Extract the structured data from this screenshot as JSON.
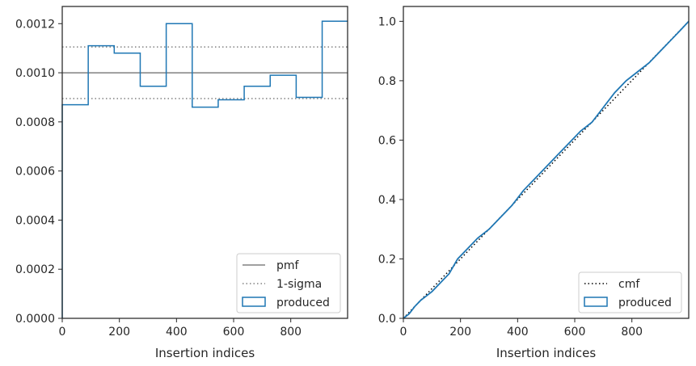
{
  "chart_data": [
    {
      "type": "histogram",
      "xlabel": "Insertion indices",
      "ylabel": "",
      "xlim": [
        0,
        999
      ],
      "ylim": [
        0,
        0.00127
      ],
      "xticks": [
        0,
        200,
        400,
        600,
        800
      ],
      "yticks": [
        0.0,
        0.0002,
        0.0004,
        0.0006,
        0.0008,
        0.001,
        0.0012
      ],
      "xtick_labels": [
        "0",
        "200",
        "400",
        "600",
        "800"
      ],
      "ytick_labels": [
        "0.0000",
        "0.0002",
        "0.0004",
        "0.0006",
        "0.0008",
        "0.0010",
        "0.0012"
      ],
      "bin_edges": [
        0,
        91,
        182,
        273,
        364,
        455,
        546,
        637,
        728,
        819,
        910,
        1000
      ],
      "values": [
        0.00087,
        0.00111,
        0.00108,
        0.000945,
        0.0012,
        0.00086,
        0.00089,
        0.000945,
        0.00099,
        0.0009,
        0.00121
      ],
      "pmf": 0.001,
      "sigma_band": [
        0.000895,
        0.001105
      ],
      "legend_position": "lower right",
      "legend": [
        "pmf",
        "1-sigma",
        "produced"
      ],
      "colors": {
        "produced": "#1f77b4",
        "pmf": "#808080",
        "sigma": "#808080"
      }
    },
    {
      "type": "line",
      "xlabel": "Insertion indices",
      "ylabel": "",
      "xlim": [
        0,
        999
      ],
      "ylim": [
        0,
        1.05
      ],
      "xticks": [
        0,
        200,
        400,
        600,
        800
      ],
      "yticks": [
        0.0,
        0.2,
        0.4,
        0.6,
        0.8,
        1.0
      ],
      "xtick_labels": [
        "0",
        "200",
        "400",
        "600",
        "800"
      ],
      "ytick_labels": [
        "0.0",
        "0.2",
        "0.4",
        "0.6",
        "0.8",
        "1.0"
      ],
      "cmf": {
        "x": [
          0,
          999
        ],
        "y": [
          0,
          1.0
        ]
      },
      "produced": {
        "x": [
          0,
          20,
          40,
          60,
          80,
          100,
          130,
          160,
          190,
          220,
          260,
          300,
          340,
          380,
          420,
          460,
          500,
          540,
          580,
          620,
          660,
          700,
          740,
          780,
          820,
          860,
          900,
          940,
          970,
          999
        ],
        "y": [
          0,
          0.015,
          0.04,
          0.06,
          0.075,
          0.09,
          0.12,
          0.15,
          0.2,
          0.23,
          0.27,
          0.3,
          0.34,
          0.38,
          0.43,
          0.47,
          0.51,
          0.55,
          0.59,
          0.63,
          0.66,
          0.71,
          0.76,
          0.8,
          0.83,
          0.86,
          0.9,
          0.94,
          0.97,
          1.0
        ]
      },
      "legend_position": "lower right",
      "legend": [
        "cmf",
        "produced"
      ],
      "colors": {
        "produced": "#1f77b4",
        "cmf": "#000000"
      }
    }
  ]
}
